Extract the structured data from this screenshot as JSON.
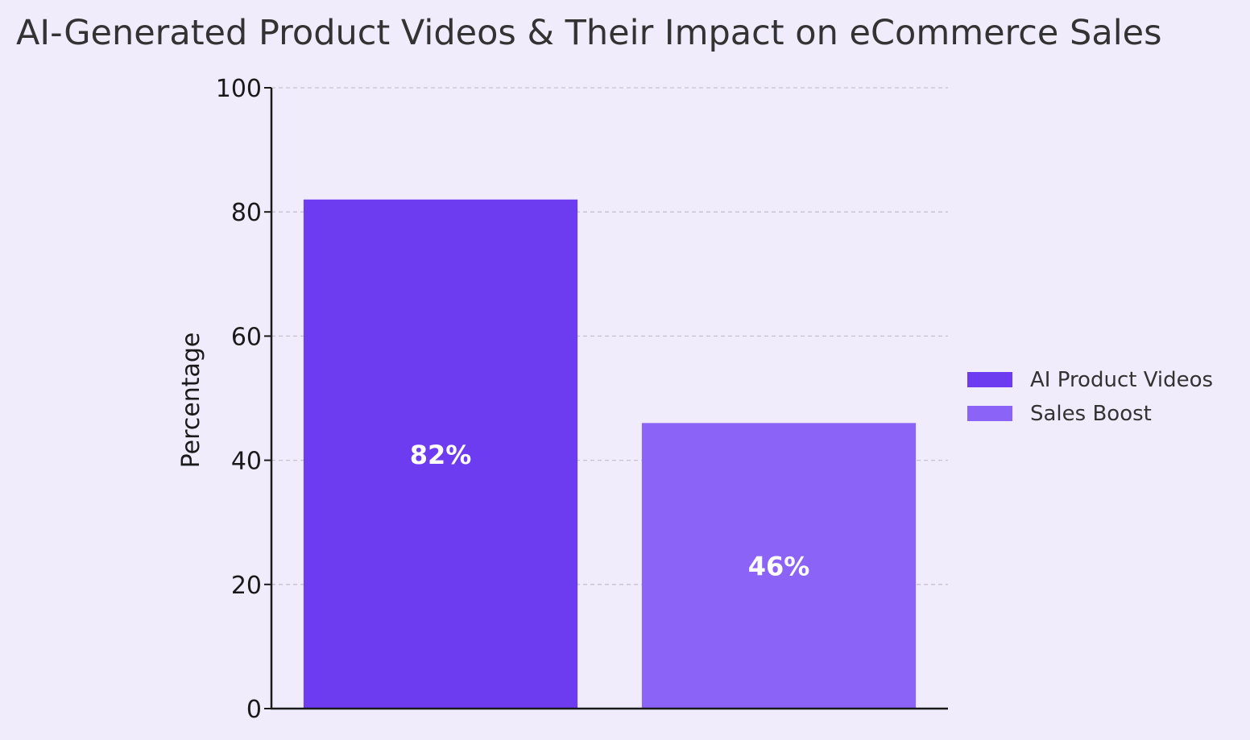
{
  "chart_data": {
    "type": "bar",
    "title": "AI-Generated Product Videos & Their Impact on eCommerce Sales",
    "xlabel": "",
    "ylabel": "Percentage",
    "ylim": [
      0,
      100
    ],
    "yticks": [
      0,
      20,
      40,
      60,
      80,
      100
    ],
    "ytick_labels": [
      "0",
      "20",
      "40",
      "60",
      "80",
      "100"
    ],
    "grid": "horizontal dashed",
    "legend_position": "right",
    "categories": [
      "AI Product Videos",
      "Sales Boost"
    ],
    "values": [
      82,
      46
    ],
    "value_labels": [
      "82%",
      "46%"
    ],
    "colors": [
      "#6d3bf0",
      "#8b63f7"
    ],
    "legend": [
      {
        "label": "AI Product Videos",
        "color": "#6d3bf0"
      },
      {
        "label": "Sales Boost",
        "color": "#8b63f7"
      }
    ]
  }
}
